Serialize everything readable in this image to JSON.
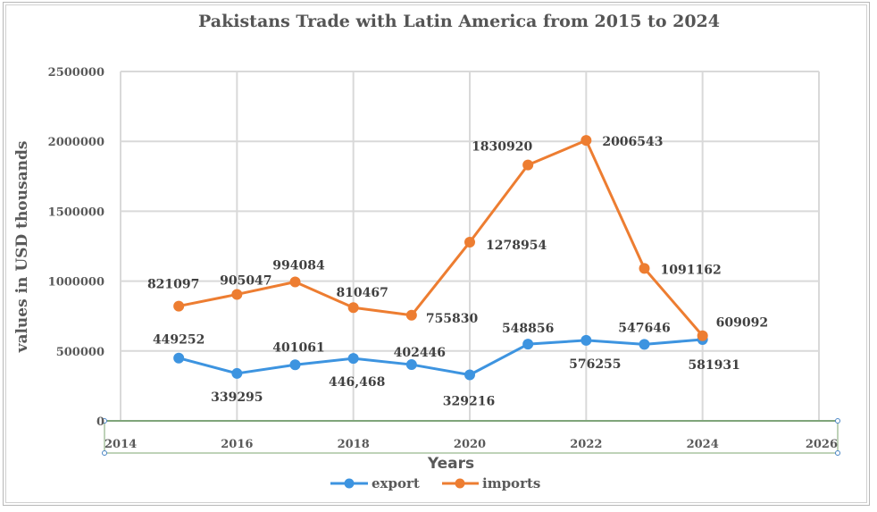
{
  "chart_data": {
    "type": "scatter",
    "title": "Pakistans Trade with Latin America from 2015 to 2024",
    "xlabel": "Years",
    "ylabel": "values in USD thousands",
    "xlim": [
      2014,
      2026
    ],
    "ylim": [
      0,
      2500000
    ],
    "xticks": [
      "2014",
      "2016",
      "2018",
      "2020",
      "2022",
      "2024",
      "2026"
    ],
    "yticks": [
      "0",
      "500000",
      "1000000",
      "1500000",
      "2000000",
      "2500000"
    ],
    "grid": true,
    "legend_position": "bottom",
    "x": [
      2015,
      2016,
      2017,
      2018,
      2019,
      2020,
      2021,
      2022,
      2023,
      2024
    ],
    "series": [
      {
        "name": "export",
        "color": "#3d94e0",
        "values": [
          449252,
          339295,
          401061,
          446468,
          402446,
          329216,
          548856,
          576255,
          547646,
          581931
        ],
        "labels": [
          "449252",
          "339295",
          "401061",
          "446,468",
          "402446",
          "329216",
          "548856",
          "576255",
          "547646",
          "581931"
        ]
      },
      {
        "name": "imports",
        "color": "#ed7d31",
        "values": [
          821097,
          905047,
          994084,
          810467,
          755830,
          1278954,
          1830920,
          2006543,
          1091162,
          609092
        ],
        "labels": [
          "821097",
          "905047",
          "994084",
          "810467",
          "755830",
          "1278954",
          "1830920",
          "2006543",
          "1091162",
          "609092"
        ]
      }
    ]
  }
}
